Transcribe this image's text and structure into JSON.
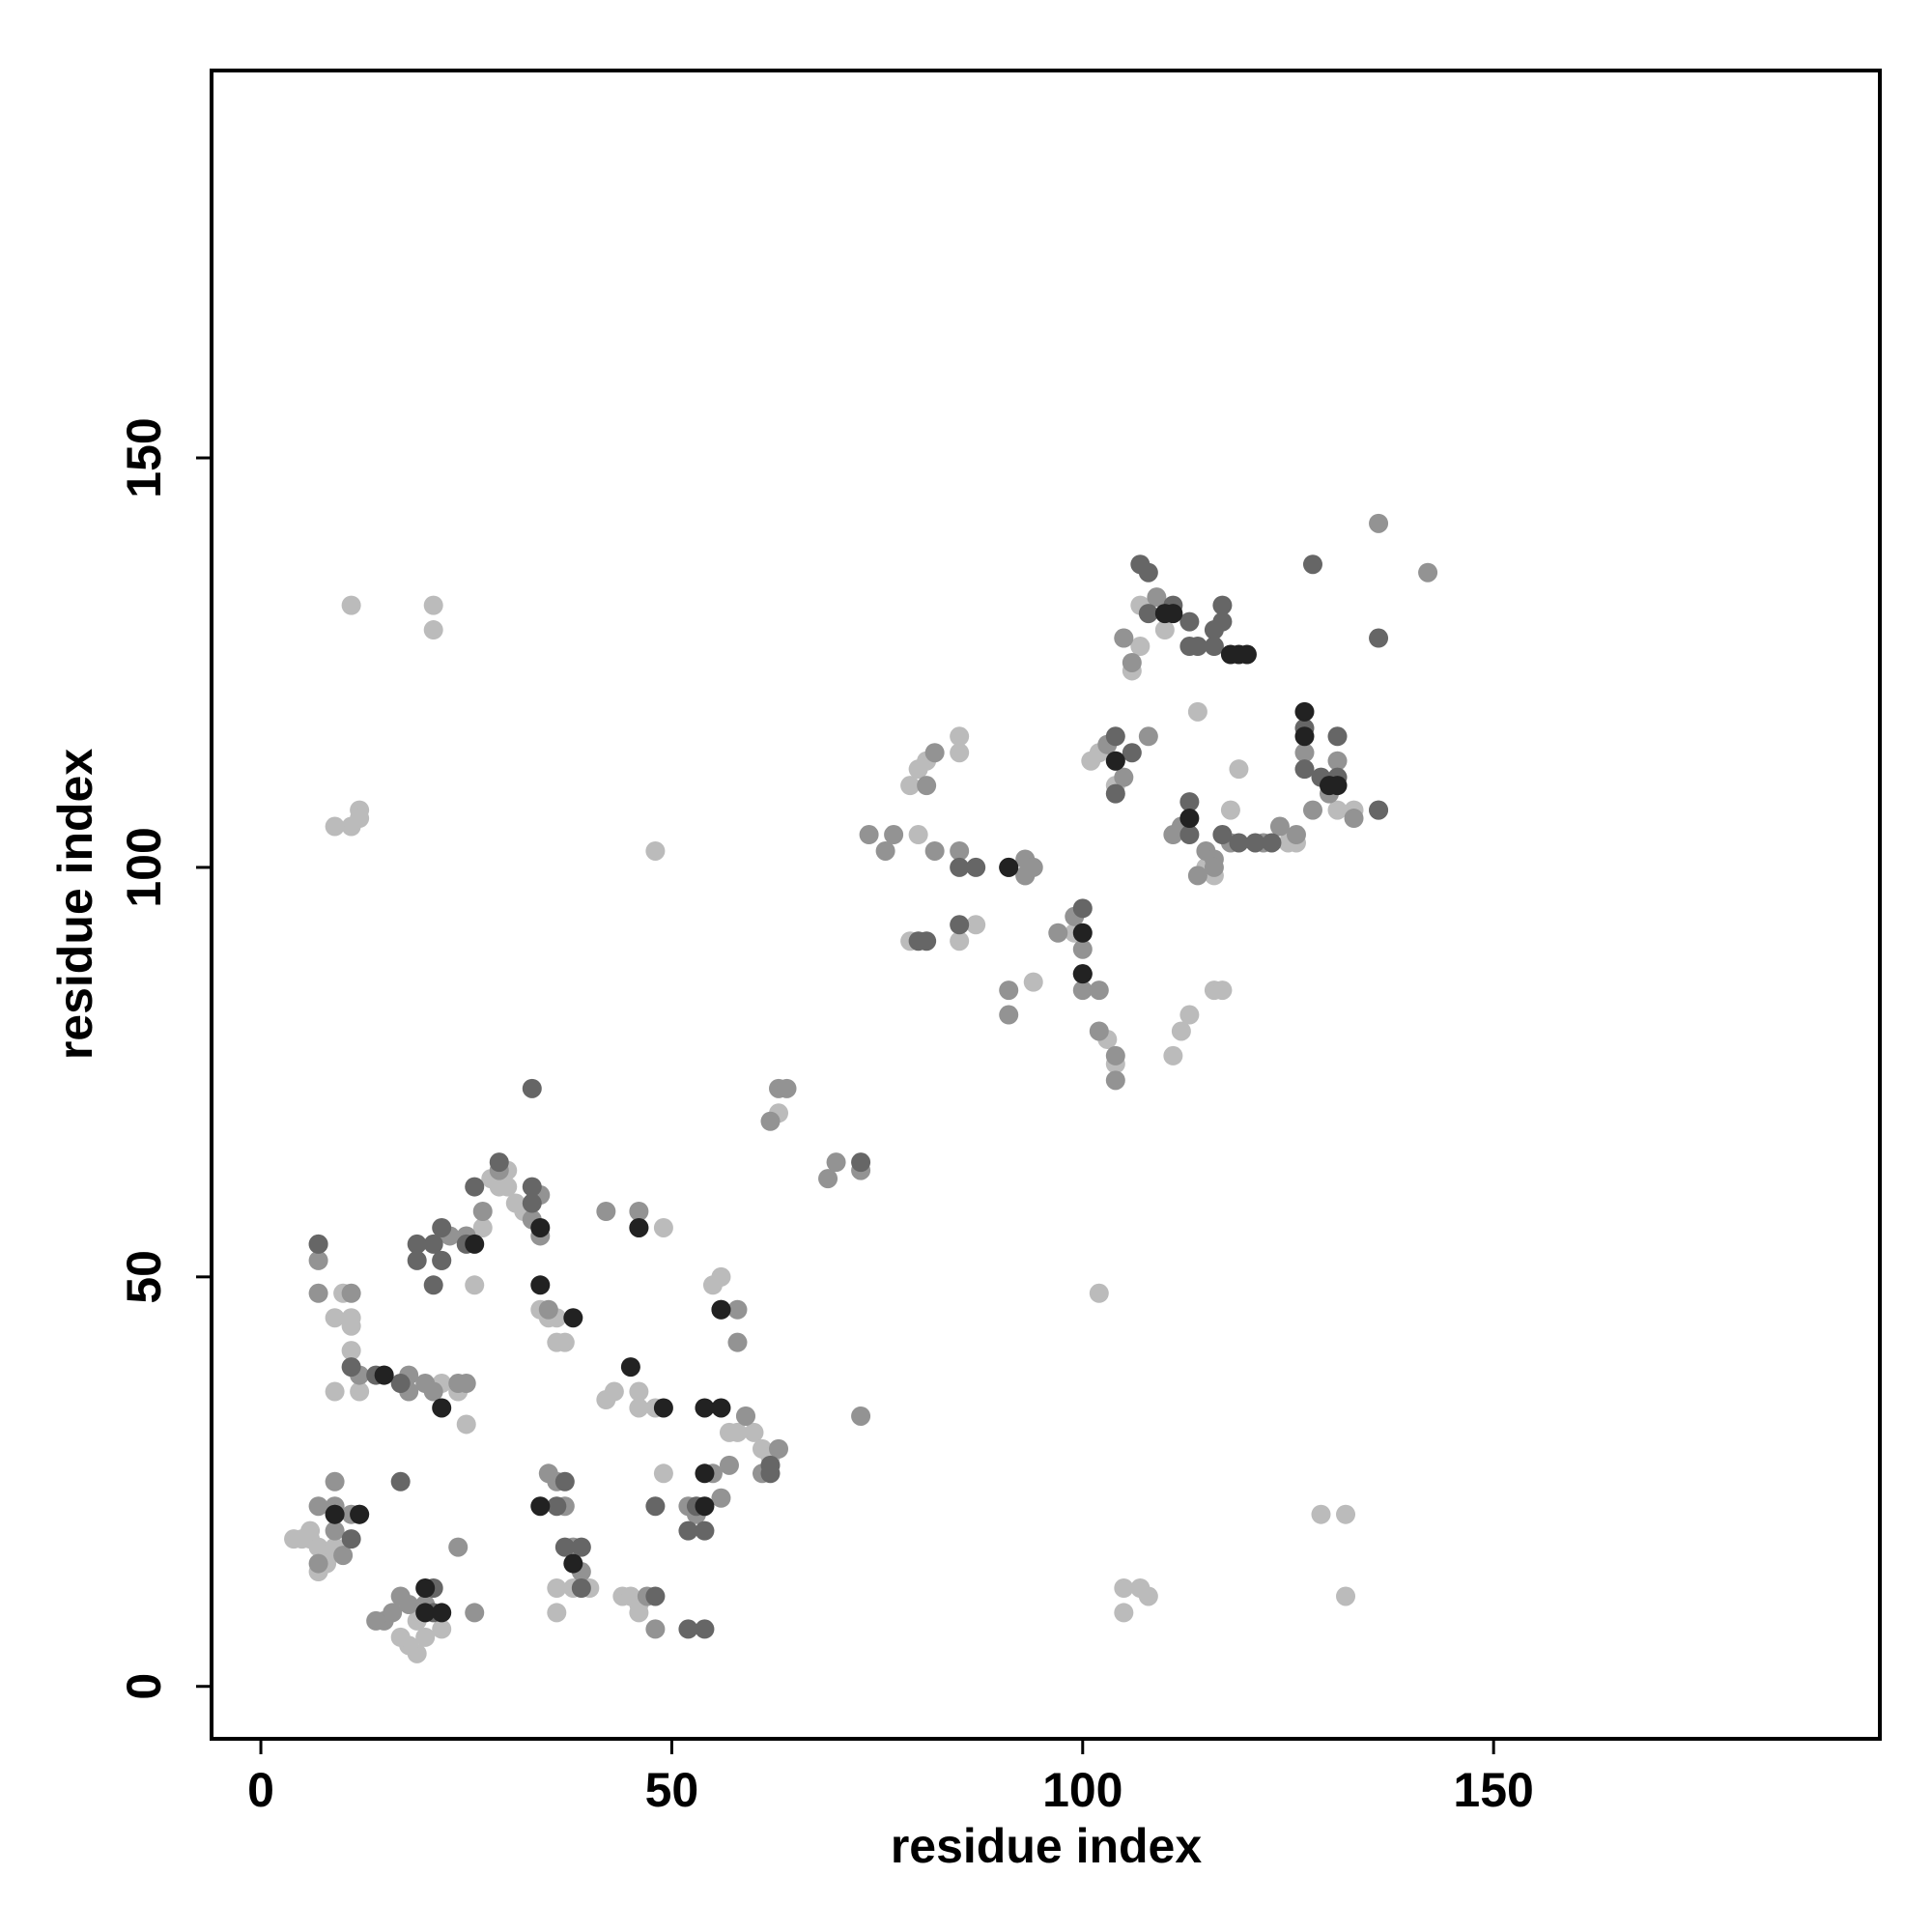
{
  "chart_data": {
    "type": "scatter",
    "xlabel": "residue index",
    "ylabel": "residue index",
    "xlim": [
      -6,
      197
    ],
    "ylim": [
      -6.4,
      197.3
    ],
    "xticks": [
      0,
      50,
      100,
      150
    ],
    "yticks": [
      0,
      50,
      100,
      150
    ],
    "series": [
      {
        "color": "#bbbbbb",
        "x": [
          5,
          6,
          7,
          8,
          9,
          10,
          9,
          11,
          11,
          11,
          12,
          12,
          9,
          11,
          12,
          12,
          11,
          9,
          21,
          21,
          27,
          26,
          28,
          29,
          30,
          31,
          32,
          30,
          34,
          35,
          36,
          37,
          36,
          38,
          36,
          36,
          40,
          42,
          43,
          44,
          45,
          46,
          46,
          48,
          49,
          49,
          48,
          46,
          46,
          55,
          56,
          57,
          58,
          59,
          60,
          61,
          62,
          63,
          79,
          80,
          81,
          85,
          85,
          87,
          85,
          79,
          80,
          93,
          94,
          99,
          101,
          102,
          104,
          102,
          103,
          104,
          105,
          106,
          107,
          107,
          110,
          111,
          112,
          113,
          114,
          116,
          117,
          118,
          119,
          105,
          107,
          108,
          105,
          129,
          132,
          132,
          126,
          125,
          131,
          133,
          115,
          116,
          19,
          18,
          20,
          19,
          24,
          25,
          22,
          22,
          17,
          4,
          8,
          6,
          7
        ],
        "values": [
          18,
          18,
          17,
          16,
          17,
          48,
          45,
          45,
          44,
          41,
          38,
          36,
          36,
          132,
          107,
          106,
          105,
          105,
          132,
          129,
          56,
          49,
          62,
          61,
          61,
          59,
          58,
          63,
          46,
          45,
          45,
          42,
          42,
          12,
          12,
          9,
          12,
          35,
          36,
          11,
          11,
          10,
          9,
          102,
          56,
          26,
          34,
          36,
          34,
          49,
          50,
          31,
          31,
          33,
          31,
          29,
          28,
          70,
          110,
          112,
          113,
          116,
          114,
          93,
          91,
          91,
          104,
          99,
          86,
          92,
          113,
          114,
          110,
          48,
          79,
          76,
          128,
          124,
          127,
          132,
          129,
          77,
          80,
          82,
          119,
          85,
          85,
          107,
          112,
          12,
          12,
          11,
          9,
          21,
          21,
          11,
          103,
          103,
          107,
          107,
          100,
          99,
          4,
          5,
          6,
          8,
          36,
          32,
          37,
          7,
          6,
          18,
          15,
          19,
          14
        ]
      },
      {
        "color": "#939393",
        "x": [
          7,
          7,
          7,
          11,
          9,
          7,
          9,
          11,
          12,
          18,
          18,
          20,
          21,
          22,
          23,
          24,
          25,
          27,
          25,
          29,
          33,
          34,
          34,
          35,
          37,
          36,
          35,
          38,
          39,
          42,
          46,
          46,
          47,
          48,
          52,
          53,
          56,
          55,
          57,
          58,
          58,
          59,
          61,
          63,
          63,
          62,
          64,
          69,
          70,
          73,
          73,
          74,
          76,
          77,
          81,
          82,
          82,
          85,
          91,
          91,
          93,
          93,
          94,
          97,
          99,
          100,
          100,
          102,
          102,
          104,
          104,
          103,
          104,
          105,
          105,
          106,
          108,
          109,
          111,
          112,
          114,
          115,
          116,
          116,
          118,
          122,
          124,
          126,
          127,
          128,
          130,
          131,
          133,
          136,
          136,
          142,
          16,
          17,
          18,
          15,
          14,
          20,
          26,
          24,
          9,
          10,
          7
        ],
        "values": [
          54,
          52,
          48,
          48,
          25,
          22,
          22,
          21,
          38,
          38,
          36,
          37,
          36,
          52,
          55,
          37,
          37,
          58,
          55,
          63,
          57,
          55,
          60,
          46,
          22,
          25,
          26,
          17,
          14,
          58,
          58,
          56,
          11,
          7,
          22,
          21,
          23,
          26,
          27,
          46,
          42,
          33,
          26,
          29,
          73,
          69,
          73,
          62,
          64,
          63,
          33,
          104,
          102,
          104,
          110,
          114,
          102,
          102,
          85,
          82,
          99,
          101,
          100,
          92,
          94,
          90,
          85,
          85,
          80,
          77,
          74,
          115,
          113,
          128,
          111,
          125,
          116,
          133,
          104,
          105,
          99,
          102,
          101,
          100,
          103,
          103,
          105,
          104,
          114,
          107,
          109,
          113,
          106,
          107,
          142,
          136,
          9,
          11,
          10,
          8,
          8,
          10,
          9,
          17,
          19,
          16,
          15
        ]
      },
      {
        "color": "#666666",
        "x": [
          7,
          9,
          12,
          11,
          11,
          14,
          17,
          19,
          19,
          21,
          21,
          22,
          22,
          26,
          29,
          33,
          33,
          33,
          37,
          36,
          37,
          39,
          39,
          48,
          52,
          54,
          52,
          54,
          48,
          53,
          56,
          62,
          62,
          73,
          80,
          81,
          85,
          85,
          87,
          91,
          100,
          100,
          104,
          104,
          106,
          108,
          107,
          108,
          111,
          113,
          113,
          114,
          116,
          116,
          117,
          117,
          113,
          113,
          117,
          119,
          121,
          127,
          127,
          128,
          129,
          131,
          131,
          136,
          136,
          123,
          15,
          17,
          21,
          21,
          25
        ],
        "values": [
          54,
          21,
          21,
          18,
          39,
          38,
          25,
          54,
          52,
          49,
          54,
          52,
          56,
          61,
          64,
          73,
          61,
          59,
          25,
          22,
          17,
          17,
          12,
          11,
          7,
          7,
          19,
          19,
          22,
          22,
          46,
          26,
          27,
          64,
          91,
          91,
          93,
          100,
          100,
          100,
          95,
          87,
          116,
          109,
          114,
          131,
          137,
          136,
          132,
          130,
          127,
          127,
          129,
          127,
          130,
          132,
          108,
          104,
          104,
          103,
          103,
          117,
          112,
          137,
          111,
          116,
          111,
          107,
          128,
          103,
          38,
          37,
          12,
          9,
          54
        ]
      },
      {
        "color": "#222222",
        "x": [
          9,
          12,
          15,
          20,
          20,
          22,
          22,
          26,
          34,
          34,
          34,
          38,
          38,
          45,
          46,
          49,
          54,
          54,
          56,
          56,
          54,
          91,
          100,
          100,
          104,
          110,
          111,
          118,
          119,
          120,
          127,
          127,
          130,
          131,
          113
        ],
        "values": [
          21,
          21,
          38,
          9,
          12,
          34,
          9,
          54,
          56,
          49,
          22,
          45,
          15,
          39,
          56,
          34,
          34,
          26,
          34,
          46,
          22,
          100,
          92,
          87,
          113,
          131,
          131,
          126,
          126,
          126,
          119,
          116,
          110,
          110,
          106
        ]
      }
    ]
  }
}
